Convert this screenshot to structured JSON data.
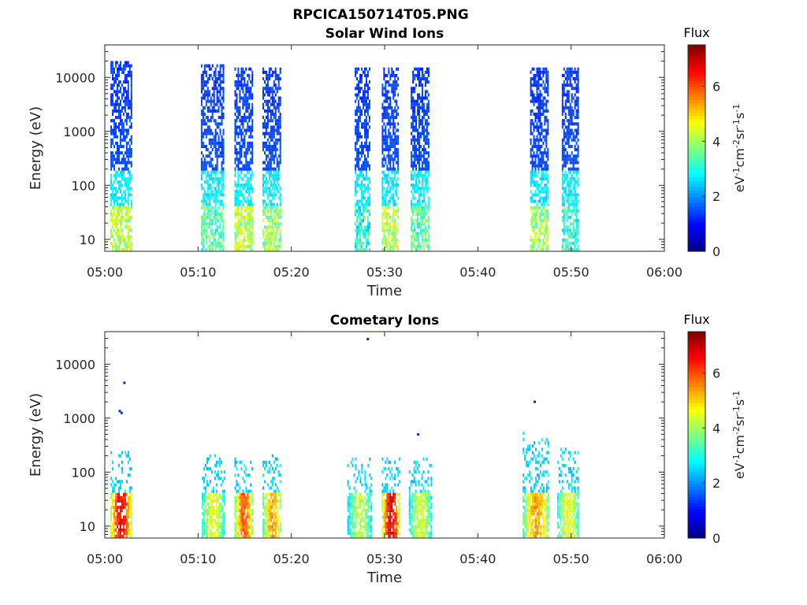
{
  "figure": {
    "title": "RPCICA150714T05.PNG"
  },
  "chart_data": [
    {
      "type": "heatmap",
      "title": "Solar Wind Ions",
      "xlabel": "Time",
      "ylabel": "Energy (eV)",
      "x_ticks": [
        "05:00",
        "05:10",
        "05:20",
        "05:30",
        "05:40",
        "05:50",
        "06:00"
      ],
      "xlim_minutes": [
        0,
        60
      ],
      "y_scale": "log",
      "y_ticks": [
        "10",
        "100",
        "1000",
        "10000"
      ],
      "ylim": [
        6,
        40000
      ],
      "colorbar": {
        "title": "Flux",
        "label": "eV-1cm-2sr-1s-1",
        "ticks": [
          "0",
          "2",
          "4",
          "6"
        ],
        "range": [
          0,
          7.5
        ],
        "colormap": "jet"
      },
      "bursts": [
        {
          "start_min": 0.6,
          "end_min": 2.9,
          "max_energy_eV": 20000,
          "low_energy_peak_flux": 5.0
        },
        {
          "start_min": 10.3,
          "end_min": 12.7,
          "max_energy_eV": 18000,
          "low_energy_peak_flux": 4.2
        },
        {
          "start_min": 13.9,
          "end_min": 15.8,
          "max_energy_eV": 15000,
          "low_energy_peak_flux": 5.0
        },
        {
          "start_min": 16.9,
          "end_min": 18.8,
          "max_energy_eV": 15000,
          "low_energy_peak_flux": 4.8
        },
        {
          "start_min": 26.8,
          "end_min": 28.4,
          "max_energy_eV": 15000,
          "low_energy_peak_flux": 3.8
        },
        {
          "start_min": 29.7,
          "end_min": 31.4,
          "max_energy_eV": 15000,
          "low_energy_peak_flux": 5.0
        },
        {
          "start_min": 32.8,
          "end_min": 34.8,
          "max_energy_eV": 15000,
          "low_energy_peak_flux": 4.2
        },
        {
          "start_min": 45.6,
          "end_min": 47.6,
          "max_energy_eV": 15000,
          "low_energy_peak_flux": 4.8
        },
        {
          "start_min": 49.0,
          "end_min": 50.8,
          "max_energy_eV": 15000,
          "low_energy_peak_flux": 4.0
        }
      ]
    },
    {
      "type": "heatmap",
      "title": "Cometary Ions",
      "xlabel": "Time",
      "ylabel": "Energy (eV)",
      "x_ticks": [
        "05:00",
        "05:10",
        "05:20",
        "05:30",
        "05:40",
        "05:50",
        "06:00"
      ],
      "xlim_minutes": [
        0,
        60
      ],
      "y_scale": "log",
      "y_ticks": [
        "10",
        "100",
        "1000",
        "10000"
      ],
      "ylim": [
        6,
        40000
      ],
      "colorbar": {
        "title": "Flux",
        "label": "eV-1cm-2sr-1s-1",
        "ticks": [
          "0",
          "2",
          "4",
          "6"
        ],
        "range": [
          0,
          7.5
        ],
        "colormap": "jet"
      },
      "bursts": [
        {
          "start_min": 0.6,
          "end_min": 2.8,
          "max_energy_eV": 250,
          "low_energy_peak_flux": 7.0
        },
        {
          "start_min": 10.4,
          "end_min": 12.8,
          "max_energy_eV": 220,
          "low_energy_peak_flux": 5.0
        },
        {
          "start_min": 13.9,
          "end_min": 15.8,
          "max_energy_eV": 200,
          "low_energy_peak_flux": 6.3
        },
        {
          "start_min": 16.9,
          "end_min": 18.9,
          "max_energy_eV": 220,
          "low_energy_peak_flux": 5.8
        },
        {
          "start_min": 26.0,
          "end_min": 28.6,
          "max_energy_eV": 200,
          "low_energy_peak_flux": 4.6
        },
        {
          "start_min": 29.7,
          "end_min": 31.6,
          "max_energy_eV": 200,
          "low_energy_peak_flux": 7.2
        },
        {
          "start_min": 32.6,
          "end_min": 35.0,
          "max_energy_eV": 200,
          "low_energy_peak_flux": 4.8
        },
        {
          "start_min": 44.8,
          "end_min": 47.6,
          "max_energy_eV": 600,
          "low_energy_peak_flux": 5.8
        },
        {
          "start_min": 48.5,
          "end_min": 50.8,
          "max_energy_eV": 280,
          "low_energy_peak_flux": 5.0
        }
      ],
      "sparse_points": [
        {
          "time_min": 2.1,
          "energy_eV": 4500,
          "flux": 1.2
        },
        {
          "time_min": 1.6,
          "energy_eV": 1350,
          "flux": 1.2
        },
        {
          "time_min": 1.8,
          "energy_eV": 1250,
          "flux": 1.2
        },
        {
          "time_min": 28.2,
          "energy_eV": 29000,
          "flux": 1.2
        },
        {
          "time_min": 33.6,
          "energy_eV": 500,
          "flux": 1.2
        },
        {
          "time_min": 46.1,
          "energy_eV": 2000,
          "flux": 1.2
        }
      ]
    }
  ]
}
